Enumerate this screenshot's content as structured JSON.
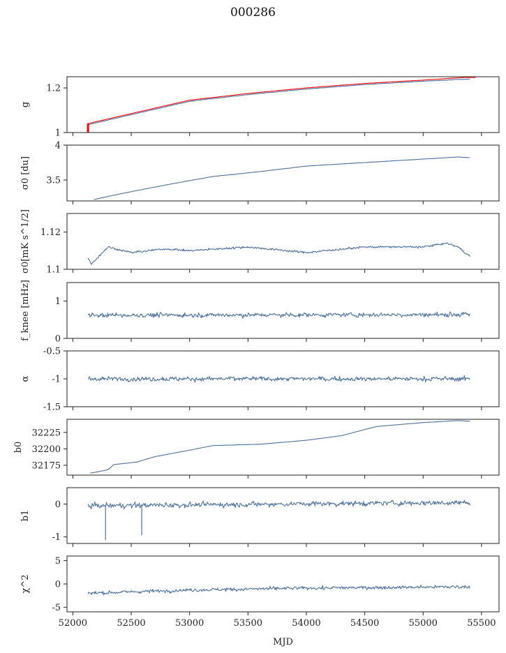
{
  "figure": {
    "title": "000286",
    "xlabel": "MJD",
    "colors": {
      "series": "#4c72a0",
      "fit": "#ff0000",
      "axis": "#222222"
    }
  },
  "chart_data": {
    "type": "line",
    "title": "000286",
    "xlabel": "MJD",
    "xlim": [
      51950,
      55650
    ],
    "xticks": [
      52000,
      52500,
      53000,
      53500,
      54000,
      54500,
      55000,
      55500
    ],
    "x_range": [
      52130,
      55400
    ],
    "panels": [
      {
        "key": "g",
        "ylabel": "g",
        "ylim": [
          1.0,
          1.25
        ],
        "yticks": [
          1.0,
          1.2
        ],
        "series": [
          {
            "name": "g",
            "color": "#4c72a0",
            "knots": [
              [
                52130,
                1.035
              ],
              [
                52500,
                1.08
              ],
              [
                53000,
                1.14
              ],
              [
                53500,
                1.17
              ],
              [
                54000,
                1.195
              ],
              [
                54500,
                1.215
              ],
              [
                55000,
                1.23
              ],
              [
                55400,
                1.24
              ]
            ],
            "noise": 0.002
          },
          {
            "name": "g model",
            "color": "#ff0000",
            "knots": [
              [
                52130,
                1.04
              ],
              [
                52500,
                1.085
              ],
              [
                53000,
                1.145
              ],
              [
                53500,
                1.175
              ],
              [
                54000,
                1.2
              ],
              [
                54500,
                1.22
              ],
              [
                55000,
                1.235
              ],
              [
                55450,
                1.25
              ]
            ],
            "noise": 0.001
          }
        ],
        "spikes": [
          [
            52130,
            1.0,
            1.04
          ]
        ]
      },
      {
        "key": "sigma0_du",
        "ylabel": "σ0 [du]",
        "ylim": [
          3.2,
          4.0
        ],
        "yticks": [
          3.5,
          4.0
        ],
        "series": [
          {
            "name": "σ0 [du]",
            "color": "#4c72a0",
            "knots": [
              [
                52180,
                3.22
              ],
              [
                52400,
                3.3
              ],
              [
                52800,
                3.43
              ],
              [
                53200,
                3.55
              ],
              [
                53600,
                3.62
              ],
              [
                54000,
                3.7
              ],
              [
                54500,
                3.75
              ],
              [
                55000,
                3.8
              ],
              [
                55300,
                3.83
              ],
              [
                55400,
                3.82
              ]
            ],
            "noise": 0.004
          }
        ]
      },
      {
        "key": "sigma0_mK",
        "ylabel": "σ0[mK s^1/2]",
        "ylim": [
          1.1,
          1.13
        ],
        "yticks": [
          1.1,
          1.12
        ],
        "series": [
          {
            "name": "σ0 [mK s1/2]",
            "color": "#4c72a0",
            "knots": [
              [
                52130,
                1.106
              ],
              [
                52160,
                1.103
              ],
              [
                52300,
                1.112
              ],
              [
                52500,
                1.109
              ],
              [
                52800,
                1.111
              ],
              [
                53000,
                1.11
              ],
              [
                53500,
                1.112
              ],
              [
                54000,
                1.109
              ],
              [
                54500,
                1.112
              ],
              [
                55000,
                1.112
              ],
              [
                55200,
                1.114
              ],
              [
                55300,
                1.112
              ],
              [
                55400,
                1.107
              ]
            ],
            "noise": 0.0012
          }
        ]
      },
      {
        "key": "fknee",
        "ylabel": "f_knee [mHz]",
        "ylim": [
          0,
          1.5
        ],
        "yticks": [
          0,
          1
        ],
        "series": [
          {
            "name": "fknee [mHz]",
            "color": "#4c72a0",
            "knots": [
              [
                52130,
                0.62
              ],
              [
                55400,
                0.64
              ]
            ],
            "noise": 0.13
          }
        ]
      },
      {
        "key": "alpha",
        "ylabel": "α",
        "ylim": [
          -1.5,
          -0.5
        ],
        "yticks": [
          -1.5,
          -1.0,
          -0.5
        ],
        "series": [
          {
            "name": "α",
            "color": "#4c72a0",
            "knots": [
              [
                52130,
                -1.0
              ],
              [
                55400,
                -1.0
              ]
            ],
            "noise": 0.09
          }
        ]
      },
      {
        "key": "b0",
        "ylabel": "b0",
        "ylim": [
          32160,
          32245
        ],
        "yticks": [
          32175,
          32200,
          32225
        ],
        "series": [
          {
            "name": "b0",
            "color": "#4c72a0",
            "knots": [
              [
                52150,
                32163
              ],
              [
                52300,
                32168
              ],
              [
                52350,
                32176
              ],
              [
                52550,
                32180
              ],
              [
                52700,
                32188
              ],
              [
                53000,
                32198
              ],
              [
                53200,
                32205
              ],
              [
                53600,
                32207
              ],
              [
                54000,
                32213
              ],
              [
                54300,
                32220
              ],
              [
                54600,
                32234
              ],
              [
                55000,
                32240
              ],
              [
                55300,
                32243
              ],
              [
                55400,
                32242
              ]
            ],
            "noise": 0.3
          }
        ]
      },
      {
        "key": "b1",
        "ylabel": "b1",
        "ylim": [
          -1.2,
          0.5
        ],
        "yticks": [
          -1,
          0
        ],
        "series": [
          {
            "name": "b1",
            "color": "#4c72a0",
            "knots": [
              [
                52130,
                -0.05
              ],
              [
                55400,
                0.05
              ]
            ],
            "noise": 0.17
          }
        ],
        "spikes": [
          [
            52280,
            -0.05,
            -1.1
          ],
          [
            52590,
            -0.05,
            -0.95
          ]
        ]
      },
      {
        "key": "chi2",
        "ylabel": "χ^2",
        "ylim": [
          -6,
          6
        ],
        "yticks": [
          -5,
          0,
          5
        ],
        "series": [
          {
            "name": "χ2",
            "color": "#4c72a0",
            "knots": [
              [
                52130,
                -2.0
              ],
              [
                53000,
                -1.3
              ],
              [
                54000,
                -0.9
              ],
              [
                55400,
                -0.6
              ]
            ],
            "noise": 0.8
          }
        ]
      }
    ]
  }
}
